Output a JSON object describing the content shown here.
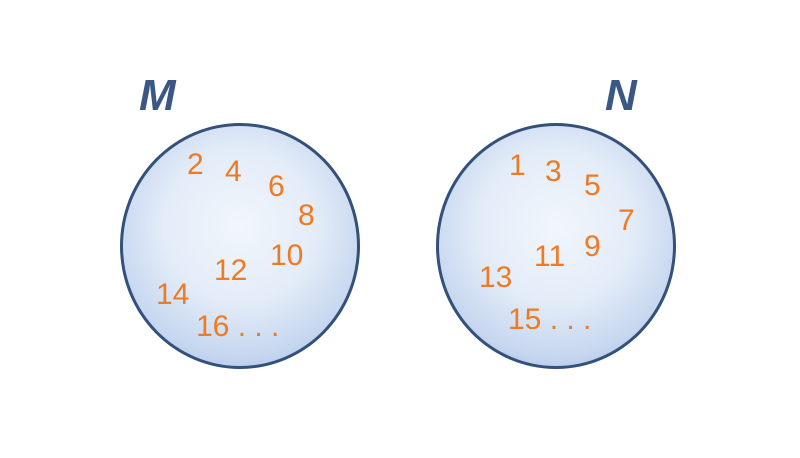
{
  "colors": {
    "label": "#3a5883",
    "circle_border": "#34517b",
    "circle_fill": "#dce7f6",
    "number": "#ef7a22"
  },
  "sets": [
    {
      "label": "M",
      "elements": [
        "2",
        "4",
        "6",
        "8",
        "10",
        "12",
        "14",
        "16 . . ."
      ]
    },
    {
      "label": "N",
      "elements": [
        "1",
        "3",
        "5",
        "7",
        "9",
        "11",
        "13",
        "15 . . ."
      ]
    }
  ]
}
